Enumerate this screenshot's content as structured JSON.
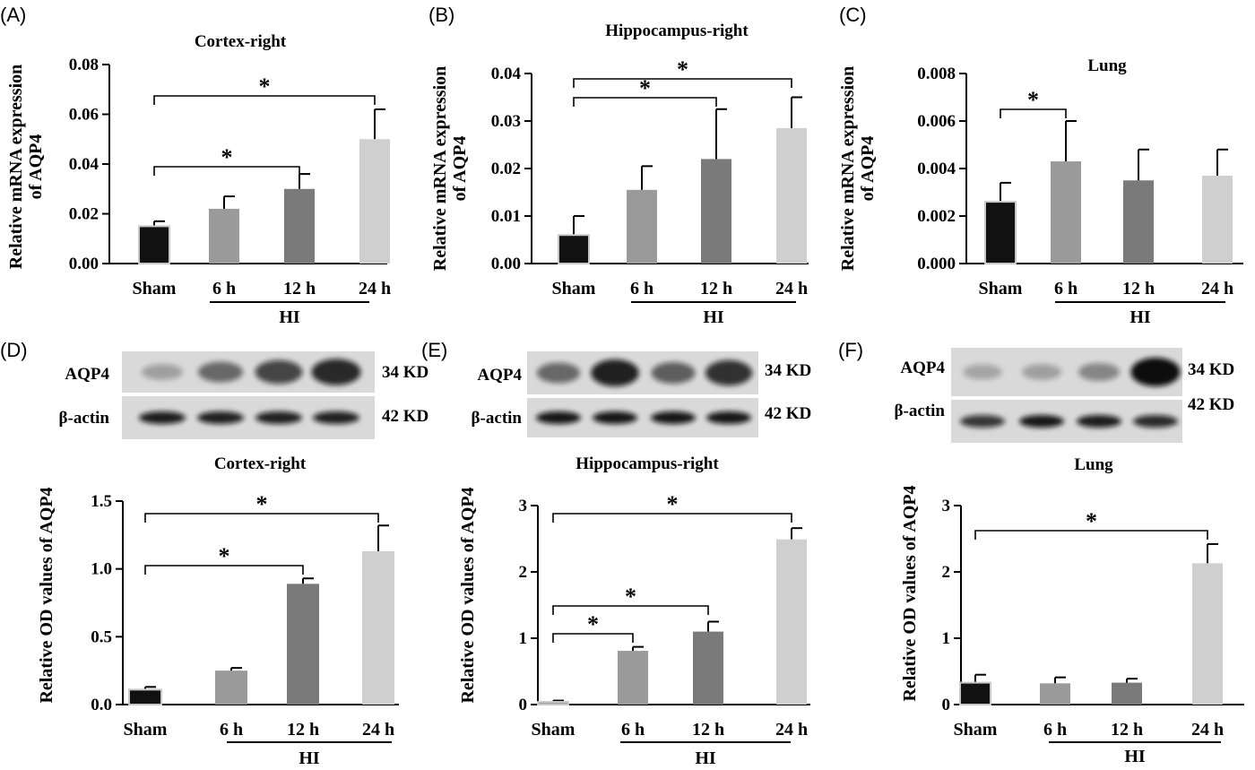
{
  "blots": [
    {
      "panel": "(D)",
      "protein": "AQP4",
      "control": "β-actin",
      "kd_top": "34 KD",
      "kd_bottom": "42 KD",
      "top_intensity": [
        0.28,
        0.55,
        0.72,
        0.86
      ],
      "bottom_intensity": [
        0.92,
        0.9,
        0.9,
        0.9
      ]
    },
    {
      "panel": "(E)",
      "protein": "AQP4",
      "control": "β-actin",
      "kd_top": "34 KD",
      "kd_bottom": "42 KD",
      "top_intensity": [
        0.55,
        0.9,
        0.6,
        0.82
      ],
      "bottom_intensity": [
        0.95,
        0.95,
        0.95,
        0.95
      ]
    },
    {
      "panel": "(F)",
      "protein": "AQP4",
      "control": "β-actin",
      "kd_top": "34 KD",
      "kd_bottom": "42 KD",
      "top_intensity": [
        0.25,
        0.28,
        0.4,
        1.0
      ],
      "bottom_intensity": [
        0.8,
        0.95,
        0.92,
        0.85
      ]
    }
  ],
  "chart_data": [
    {
      "panel": "(A)",
      "type": "bar",
      "title": "Cortex-right",
      "ylabel": "Relative mRNA expression of AQP4",
      "categories": [
        "Sham",
        "6 h",
        "12 h",
        "24 h"
      ],
      "group_label": "HI",
      "values": [
        0.015,
        0.022,
        0.03,
        0.05
      ],
      "errors": [
        0.002,
        0.005,
        0.006,
        0.012
      ],
      "ylim": [
        0,
        0.08
      ],
      "yticks": [
        "0.00",
        "0.02",
        "0.04",
        "0.06",
        "0.08"
      ],
      "colors": [
        "#111111",
        "#9a9a9a",
        "#7a7a7a",
        "#cfcfcf"
      ],
      "significance": [
        {
          "from": 0,
          "to": 2,
          "label": "*"
        },
        {
          "from": 0,
          "to": 3,
          "label": "*"
        }
      ]
    },
    {
      "panel": "(B)",
      "type": "bar",
      "title": "Hippocampus-right",
      "ylabel": "Relative mRNA expression of AQP4",
      "categories": [
        "Sham",
        "6 h",
        "12 h",
        "24 h"
      ],
      "group_label": "HI",
      "values": [
        0.006,
        0.0155,
        0.022,
        0.0285
      ],
      "errors": [
        0.004,
        0.005,
        0.0105,
        0.0065
      ],
      "ylim": [
        0,
        0.04
      ],
      "yticks": [
        "0.00",
        "0.01",
        "0.02",
        "0.03",
        "0.04"
      ],
      "colors": [
        "#111111",
        "#9a9a9a",
        "#7a7a7a",
        "#cfcfcf"
      ],
      "significance": [
        {
          "from": 0,
          "to": 2,
          "label": "*"
        },
        {
          "from": 0,
          "to": 3,
          "label": "*"
        }
      ]
    },
    {
      "panel": "(C)",
      "type": "bar",
      "title": "Lung",
      "ylabel": "Relative mRNA expression of AQP4",
      "categories": [
        "Sham",
        "6 h",
        "12 h",
        "24 h"
      ],
      "group_label": "HI",
      "values": [
        0.0026,
        0.0043,
        0.0035,
        0.0037
      ],
      "errors": [
        0.0008,
        0.0017,
        0.0013,
        0.0011
      ],
      "ylim": [
        0,
        0.008
      ],
      "yticks": [
        "0.000",
        "0.002",
        "0.004",
        "0.006",
        "0.008"
      ],
      "colors": [
        "#111111",
        "#9a9a9a",
        "#7a7a7a",
        "#cfcfcf"
      ],
      "significance": [
        {
          "from": 0,
          "to": 1,
          "label": "*"
        }
      ]
    },
    {
      "panel": "(D)",
      "type": "bar",
      "title": "Cortex-right",
      "ylabel": "Relative OD values of AQP4",
      "categories": [
        "Sham",
        "6 h",
        "12 h",
        "24 h"
      ],
      "group_label": "HI",
      "values": [
        0.11,
        0.25,
        0.89,
        1.13
      ],
      "errors": [
        0.02,
        0.02,
        0.04,
        0.19
      ],
      "ylim": [
        0,
        1.5
      ],
      "yticks": [
        "0.0",
        "0.5",
        "1.0",
        "1.5"
      ],
      "colors": [
        "#111111",
        "#9a9a9a",
        "#7a7a7a",
        "#cfcfcf"
      ],
      "significance": [
        {
          "from": 0,
          "to": 2,
          "label": "*"
        },
        {
          "from": 0,
          "to": 3,
          "label": "*"
        }
      ]
    },
    {
      "panel": "(E)",
      "type": "bar",
      "title": "Hippocampus-right",
      "ylabel": "Relative OD values of AQP4",
      "categories": [
        "Sham",
        "6 h",
        "12 h",
        "24 h"
      ],
      "group_label": "HI",
      "values": [
        0.04,
        0.81,
        1.1,
        2.49
      ],
      "errors": [
        0.02,
        0.06,
        0.15,
        0.17
      ],
      "ylim": [
        0,
        3
      ],
      "yticks": [
        "0",
        "1",
        "2",
        "3"
      ],
      "colors": [
        "#9a9a9a",
        "#9a9a9a",
        "#7a7a7a",
        "#cfcfcf"
      ],
      "significance": [
        {
          "from": 0,
          "to": 1,
          "label": "*"
        },
        {
          "from": 0,
          "to": 2,
          "label": "*"
        },
        {
          "from": 0,
          "to": 3,
          "label": "*"
        }
      ]
    },
    {
      "panel": "(F)",
      "type": "bar",
      "title": "Lung",
      "ylabel": "Relative OD values of AQP4",
      "categories": [
        "Sham",
        "6 h",
        "12 h",
        "24 h"
      ],
      "group_label": "HI",
      "values": [
        0.33,
        0.32,
        0.33,
        2.13
      ],
      "errors": [
        0.12,
        0.09,
        0.06,
        0.29
      ],
      "ylim": [
        0,
        3
      ],
      "yticks": [
        "0",
        "1",
        "2",
        "3"
      ],
      "colors": [
        "#111111",
        "#9a9a9a",
        "#7a7a7a",
        "#cfcfcf"
      ],
      "significance": [
        {
          "from": 0,
          "to": 3,
          "label": "*"
        }
      ]
    }
  ]
}
